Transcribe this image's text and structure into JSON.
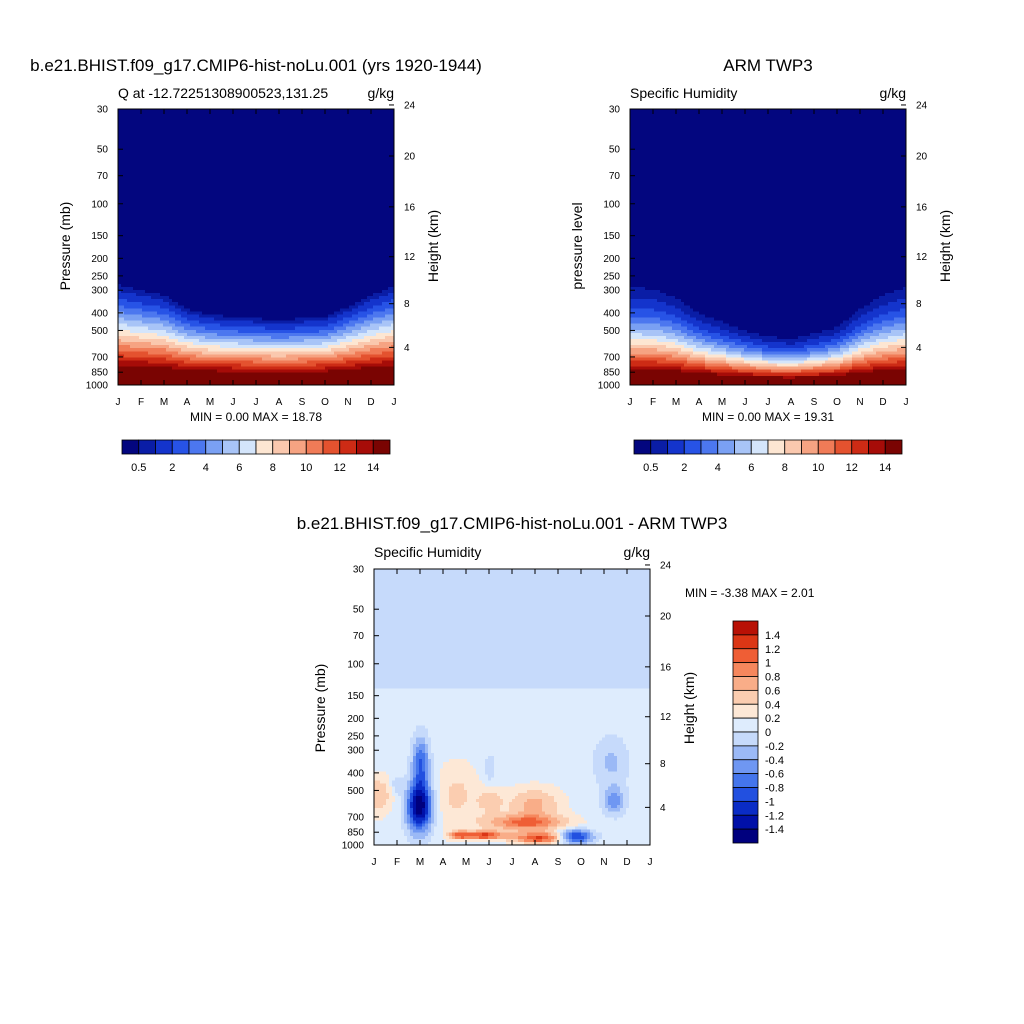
{
  "chart_data": [
    {
      "type": "heatmap",
      "title": "b.e21.BHIST.f09_g17.CMIP6-hist-noLu.001 (yrs 1920-1944)",
      "left_subtitle": "Q at -12.72251308900523,131.25",
      "right_subtitle": "g/kg",
      "ylabel": "Pressure (mb)",
      "ylabel_right": "Height (km)",
      "x_ticks": [
        "J",
        "F",
        "M",
        "A",
        "M",
        "J",
        "J",
        "A",
        "S",
        "O",
        "N",
        "D",
        "J"
      ],
      "y_ticks": [
        "30",
        "50",
        "70",
        "100",
        "150",
        "200",
        "250",
        "300",
        "400",
        "500",
        "700",
        "850",
        "1000"
      ],
      "y_ticks_right": [
        "24",
        "20",
        "16",
        "12",
        "8",
        "4"
      ],
      "stats": "MIN =   0.00 MAX =  18.78",
      "colorbar_labels": [
        "0.5",
        "2",
        "4",
        "6",
        "8",
        "10",
        "12",
        "14"
      ],
      "min": 0.0,
      "max": 18.78,
      "surface_pressure_by_month": [
        280,
        300,
        320,
        380,
        410,
        420,
        430,
        440,
        430,
        420,
        370,
        320,
        285
      ]
    },
    {
      "type": "heatmap",
      "title": "ARM TWP3",
      "left_subtitle": "Specific Humidity",
      "right_subtitle": "g/kg",
      "ylabel": "pressure level",
      "ylabel_right": "Height (km)",
      "x_ticks": [
        "J",
        "F",
        "M",
        "A",
        "M",
        "J",
        "J",
        "A",
        "S",
        "O",
        "N",
        "D",
        "J"
      ],
      "y_ticks": [
        "30",
        "50",
        "70",
        "100",
        "150",
        "200",
        "250",
        "300",
        "400",
        "500",
        "700",
        "850",
        "1000"
      ],
      "y_ticks_right": [
        "24",
        "20",
        "16",
        "12",
        "8",
        "4"
      ],
      "stats": "MIN =   0.00 MAX =  19.31",
      "colorbar_labels": [
        "0.5",
        "2",
        "4",
        "6",
        "8",
        "10",
        "12",
        "14"
      ],
      "min": 0.0,
      "max": 19.31,
      "surface_pressure_by_month": [
        290,
        295,
        330,
        400,
        450,
        500,
        540,
        560,
        520,
        480,
        380,
        320,
        290
      ]
    },
    {
      "type": "heatmap",
      "title": "b.e21.BHIST.f09_g17.CMIP6-hist-noLu.001 - ARM TWP3",
      "left_subtitle": "Specific Humidity",
      "right_subtitle": "g/kg",
      "ylabel": "Pressure (mb)",
      "ylabel_right": "Height (km)",
      "x_ticks": [
        "J",
        "F",
        "M",
        "A",
        "M",
        "J",
        "J",
        "A",
        "S",
        "O",
        "N",
        "D",
        "J"
      ],
      "y_ticks": [
        "30",
        "50",
        "70",
        "100",
        "150",
        "200",
        "250",
        "300",
        "400",
        "500",
        "700",
        "850",
        "1000"
      ],
      "y_ticks_right": [
        "24",
        "20",
        "16",
        "12",
        "8",
        "4"
      ],
      "stats": "MIN =  -3.38 MAX =   2.01",
      "colorbar_labels": [
        "1.4",
        "1.2",
        "1",
        "0.8",
        "0.6",
        "0.4",
        "0.2",
        "0",
        "-0.2",
        "-0.4",
        "-0.6",
        "-0.8",
        "-1",
        "-1.2",
        "-1.4"
      ],
      "min": -3.38,
      "max": 2.01
    }
  ],
  "colors": {
    "seq": [
      "#03067f",
      "#0a1da6",
      "#1434cc",
      "#2753e6",
      "#4c77ef",
      "#7aa0f3",
      "#a8c4f7",
      "#d4e5fb",
      "#fde6d2",
      "#fac8ae",
      "#f6a382",
      "#f07b57",
      "#e4522f",
      "#cd2b15",
      "#a60c08",
      "#7a0402"
    ],
    "div": [
      "#00007e",
      "#0010a8",
      "#0a2cc6",
      "#2250e0",
      "#4475ec",
      "#6f97f2",
      "#9bb9f6",
      "#c6dafb",
      "#deecfd",
      "#fde8d6",
      "#fbcdb0",
      "#f9ad88",
      "#f6875d",
      "#ef5e35",
      "#db3615",
      "#b81105",
      "#7e0000"
    ]
  }
}
